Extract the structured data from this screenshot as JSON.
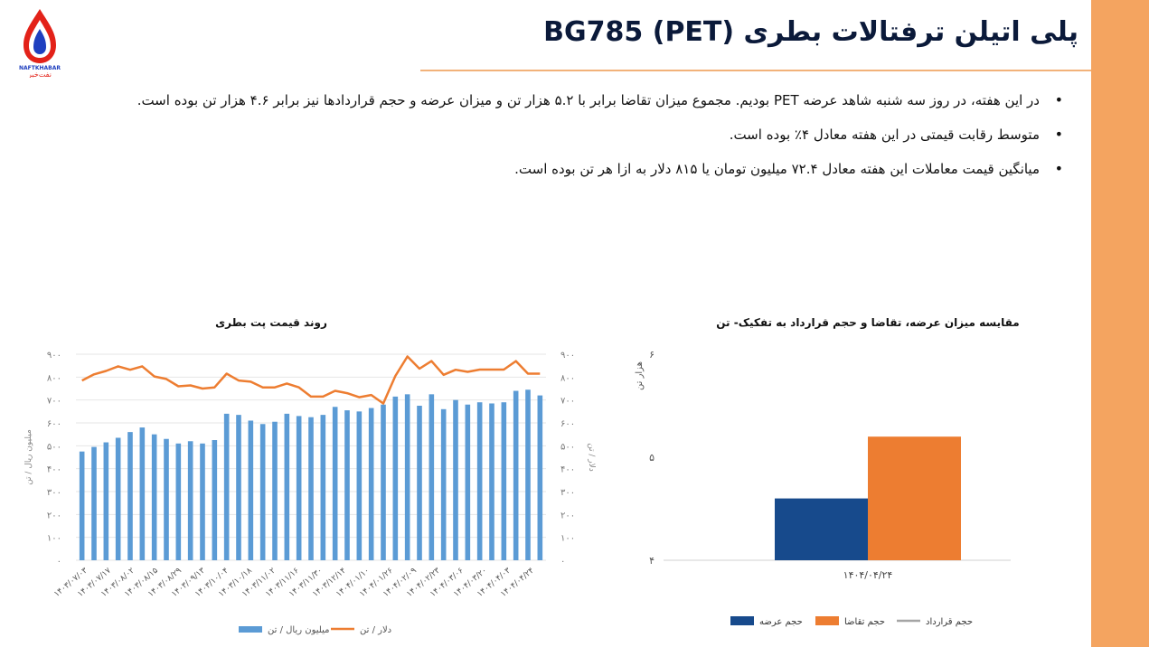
{
  "header": {
    "title": "پلی اتیلن ترفتالات بطری BG785 (PET)",
    "logo_text_en": "NAFTKHABAR",
    "logo_text_fa": "نفت‌خبر"
  },
  "bullets": [
    "در این هفته، در روز سه شنبه شاهد عرضه PET بودیم. مجموع میزان تقاضا برابر با ۵.۲ هزار تن و میزان عرضه و حجم قراردادها نیز برابر ۴.۶ هزار تن بوده است.",
    "متوسط رقابت قیمتی در این هفته معادل ۴٪ بوده است.",
    "میانگین قیمت معاملات این هفته معادل ۷۲.۴ میلیون تومان یا ۸۱۵ دلار به ازا هر تن بوده است."
  ],
  "colors": {
    "accent_bar": "#f4a460",
    "bar_blue": "#5b9bd5",
    "line_orange": "#ed7d31",
    "supply_blue": "#174a8c",
    "demand_orange": "#ed7d31",
    "contract_gray": "#a5a5a5"
  },
  "chart_data": [
    {
      "type": "bar",
      "title": "مقایسه میزان عرضه، تقاضا و حجم قرارداد به تفکیک- تن",
      "ylabel": "هزار تن",
      "ylim": [
        4,
        6
      ],
      "yticks": [
        "۴",
        "۵",
        "۶"
      ],
      "categories": [
        "۱۴۰۴/۰۴/۲۴"
      ],
      "series": [
        {
          "name": "حجم عرضه",
          "values": [
            4.6
          ]
        },
        {
          "name": "حجم تقاضا",
          "values": [
            5.2
          ]
        },
        {
          "name": "حجم قرارداد",
          "values": [
            4.6
          ]
        }
      ],
      "legend": "bottom"
    },
    {
      "type": "bar+line",
      "title": "روند قیمت پت بطری",
      "ylabel_left": "میلیون ریال / تن",
      "ylabel_right": "دلار / تن",
      "ylim_left": [
        0,
        900
      ],
      "ylim_right": [
        0,
        900
      ],
      "yticks": [
        "۰",
        "۱۰۰",
        "۲۰۰",
        "۳۰۰",
        "۴۰۰",
        "۵۰۰",
        "۶۰۰",
        "۷۰۰",
        "۸۰۰",
        "۹۰۰"
      ],
      "x_labels": [
        "۱۴۰۳/۰۷/۰۳",
        "۱۴۰۳/۰۷/۱۷",
        "۱۴۰۳/۰۸/۰۲",
        "۱۴۰۳/۰۸/۱۵",
        "۱۴۰۳/۰۸/۲۹",
        "۱۴۰۳/۰۹/۱۳",
        "۱۴۰۳/۱۰/۰۴",
        "۱۴۰۳/۱۰/۱۸",
        "۱۴۰۳/۱۱/۰۲",
        "۱۴۰۳/۱۱/۱۶",
        "۱۴۰۳/۱۱/۳۰",
        "۱۴۰۳/۱۲/۱۴",
        "۱۴۰۴/۰۱/۱۰",
        "۱۴۰۴/۰۱/۲۶",
        "۱۴۰۴/۰۲/۰۹",
        "۱۴۰۴/۰۲/۲۳",
        "۱۴۰۴/۰۳/۰۶",
        "۱۴۰۴/۰۳/۲۰",
        "۱۴۰۴/۰۴/۰۳",
        "۱۴۰۴/۰۴/۲۴"
      ],
      "series": [
        {
          "name": "میلیون ریال / تن",
          "kind": "bar",
          "values": [
            475,
            495,
            515,
            535,
            560,
            580,
            550,
            530,
            510,
            520,
            510,
            525,
            640,
            635,
            610,
            595,
            605,
            640,
            630,
            625,
            635,
            670,
            655,
            650,
            665,
            680,
            715,
            725,
            675,
            725,
            660,
            700,
            680,
            690,
            685,
            690,
            740,
            745,
            720
          ]
        },
        {
          "name": "دلار / تن",
          "kind": "line",
          "values": [
            785,
            812,
            827,
            847,
            832,
            847,
            803,
            792,
            760,
            764,
            750,
            755,
            815,
            785,
            780,
            755,
            755,
            772,
            755,
            715,
            715,
            740,
            730,
            712,
            722,
            685,
            805,
            890,
            837,
            870,
            810,
            832,
            823,
            833,
            833,
            833,
            870,
            815,
            815
          ]
        }
      ],
      "legend": "bottom"
    }
  ]
}
